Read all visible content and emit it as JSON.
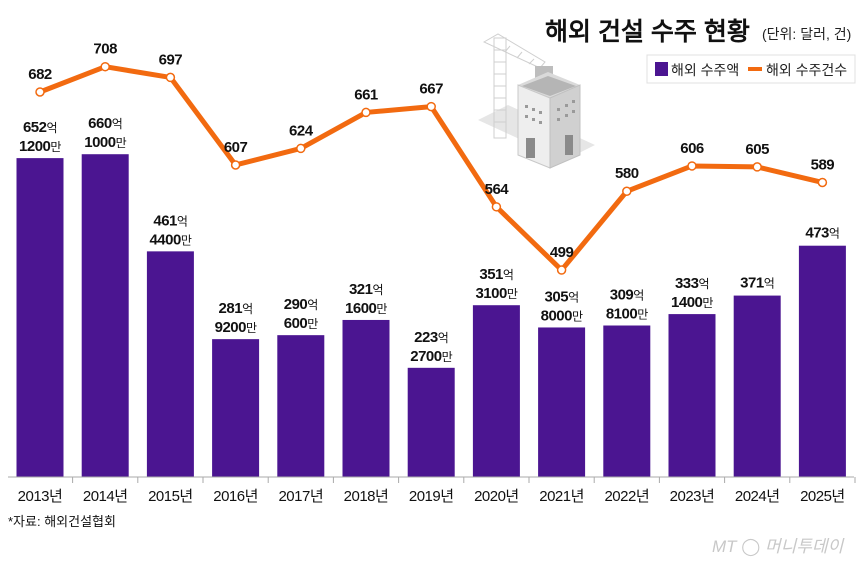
{
  "chart_data": {
    "type": "bar+line",
    "title": "해외 건설 수주 현황",
    "unit_note": "(단위: 달러, 건)",
    "categories": [
      "2013년",
      "2014년",
      "2015년",
      "2016년",
      "2017년",
      "2018년",
      "2019년",
      "2020년",
      "2021년",
      "2022년",
      "2023년",
      "2024년",
      "2025년"
    ],
    "series": [
      {
        "name": "해외 수주액",
        "type": "bar",
        "color": "#4b1591",
        "values": [
          652.12,
          660.1,
          461.44,
          281.92,
          290.06,
          321.16,
          223.27,
          351.31,
          305.8,
          309.81,
          333.14,
          371,
          473
        ],
        "labels": [
          [
            "652억",
            "1200만"
          ],
          [
            "660억",
            "1000만"
          ],
          [
            "461억",
            "4400만"
          ],
          [
            "281억",
            "9200만"
          ],
          [
            "290억",
            "600만"
          ],
          [
            "321억",
            "1600만"
          ],
          [
            "223억",
            "2700만"
          ],
          [
            "351억",
            "3100만"
          ],
          [
            "305억",
            "8000만"
          ],
          [
            "309억",
            "8100만"
          ],
          [
            "333억",
            "1400만"
          ],
          [
            "371억",
            ""
          ],
          [
            "473억",
            ""
          ]
        ]
      },
      {
        "name": "해외 수주건수",
        "type": "line",
        "color": "#f26a10",
        "values": [
          682,
          708,
          697,
          607,
          624,
          661,
          667,
          564,
          499,
          580,
          606,
          605,
          589
        ]
      }
    ],
    "grid": false,
    "legend_position": "top-right"
  },
  "source": "*자료: 해외건설협회",
  "watermark": "MT 머니투데이"
}
